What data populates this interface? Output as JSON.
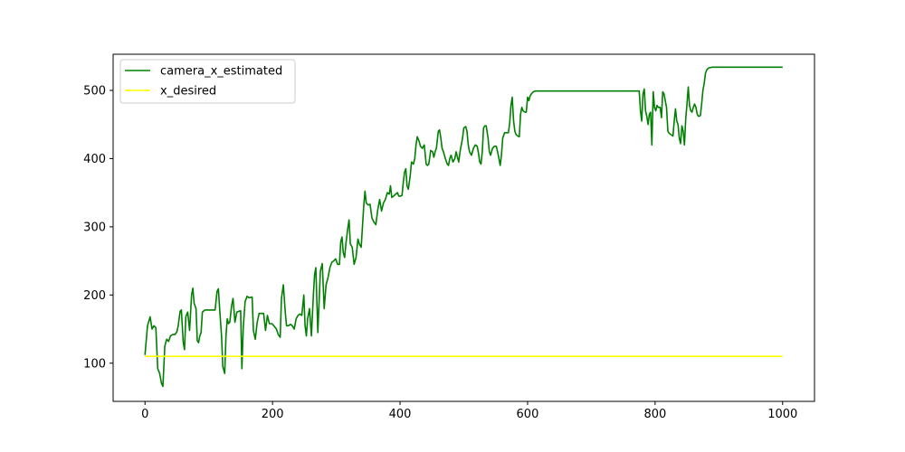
{
  "chart_data": {
    "type": "line",
    "title": "",
    "xlabel": "",
    "ylabel": "",
    "xlim": [
      -50,
      1050
    ],
    "ylim": [
      44,
      553
    ],
    "xticks": [
      0,
      200,
      400,
      600,
      800,
      1000
    ],
    "yticks": [
      100,
      200,
      300,
      400,
      500
    ],
    "grid": false,
    "legend_position": "top-left",
    "series": [
      {
        "name": "camera_x_estimated",
        "color": "#008000",
        "points": [
          [
            0,
            112
          ],
          [
            4,
            155
          ],
          [
            8,
            168
          ],
          [
            11,
            150
          ],
          [
            14,
            155
          ],
          [
            17,
            152
          ],
          [
            20,
            92
          ],
          [
            23,
            85
          ],
          [
            26,
            70
          ],
          [
            28,
            66
          ],
          [
            31,
            125
          ],
          [
            34,
            135
          ],
          [
            37,
            132
          ],
          [
            40,
            140
          ],
          [
            43,
            142
          ],
          [
            47,
            142
          ],
          [
            50,
            146
          ],
          [
            52,
            155
          ],
          [
            55,
            176
          ],
          [
            57,
            178
          ],
          [
            60,
            130
          ],
          [
            62,
            120
          ],
          [
            64,
            168
          ],
          [
            67,
            175
          ],
          [
            70,
            148
          ],
          [
            73,
            200
          ],
          [
            75,
            210
          ],
          [
            77,
            188
          ],
          [
            80,
            180
          ],
          [
            82,
            133
          ],
          [
            84,
            130
          ],
          [
            86,
            140
          ],
          [
            88,
            145
          ],
          [
            90,
            175
          ],
          [
            94,
            178
          ],
          [
            100,
            178
          ],
          [
            106,
            178
          ],
          [
            110,
            178
          ],
          [
            113,
            205
          ],
          [
            115,
            209
          ],
          [
            117,
            180
          ],
          [
            120,
            140
          ],
          [
            122,
            95
          ],
          [
            125,
            85
          ],
          [
            127,
            140
          ],
          [
            129,
            165
          ],
          [
            131,
            158
          ],
          [
            133,
            160
          ],
          [
            136,
            185
          ],
          [
            138,
            195
          ],
          [
            141,
            160
          ],
          [
            144,
            175
          ],
          [
            147,
            176
          ],
          [
            150,
            177
          ],
          [
            152,
            92
          ],
          [
            154,
            150
          ],
          [
            157,
            190
          ],
          [
            160,
            198
          ],
          [
            163,
            196
          ],
          [
            168,
            197
          ],
          [
            170,
            148
          ],
          [
            173,
            135
          ],
          [
            176,
            160
          ],
          [
            179,
            173
          ],
          [
            182,
            173
          ],
          [
            186,
            173
          ],
          [
            189,
            148
          ],
          [
            192,
            170
          ],
          [
            195,
            158
          ],
          [
            199,
            158
          ],
          [
            202,
            155
          ],
          [
            206,
            150
          ],
          [
            209,
            142
          ],
          [
            212,
            138
          ],
          [
            214,
            195
          ],
          [
            217,
            215
          ],
          [
            220,
            175
          ],
          [
            222,
            155
          ],
          [
            225,
            155
          ],
          [
            228,
            157
          ],
          [
            231,
            155
          ],
          [
            234,
            150
          ],
          [
            237,
            165
          ],
          [
            240,
            170
          ],
          [
            243,
            172
          ],
          [
            246,
            170
          ],
          [
            249,
            200
          ],
          [
            251,
            155
          ],
          [
            253,
            140
          ],
          [
            255,
            165
          ],
          [
            258,
            180
          ],
          [
            261,
            140
          ],
          [
            264,
            198
          ],
          [
            266,
            230
          ],
          [
            268,
            240
          ],
          [
            271,
            145
          ],
          [
            273,
            190
          ],
          [
            275,
            235
          ],
          [
            278,
            246
          ],
          [
            281,
            180
          ],
          [
            284,
            215
          ],
          [
            287,
            225
          ],
          [
            290,
            240
          ],
          [
            293,
            248
          ],
          [
            296,
            250
          ],
          [
            299,
            253
          ],
          [
            302,
            245
          ],
          [
            305,
            245
          ],
          [
            307,
            278
          ],
          [
            309,
            285
          ],
          [
            311,
            262
          ],
          [
            313,
            255
          ],
          [
            315,
            275
          ],
          [
            318,
            298
          ],
          [
            320,
            310
          ],
          [
            322,
            275
          ],
          [
            325,
            270
          ],
          [
            328,
            245
          ],
          [
            331,
            255
          ],
          [
            334,
            282
          ],
          [
            336,
            275
          ],
          [
            339,
            270
          ],
          [
            341,
            300
          ],
          [
            343,
            330
          ],
          [
            345,
            352
          ],
          [
            347,
            335
          ],
          [
            350,
            332
          ],
          [
            353,
            333
          ],
          [
            356,
            313
          ],
          [
            359,
            307
          ],
          [
            362,
            303
          ],
          [
            365,
            325
          ],
          [
            368,
            340
          ],
          [
            371,
            323
          ],
          [
            374,
            335
          ],
          [
            377,
            340
          ],
          [
            380,
            350
          ],
          [
            383,
            348
          ],
          [
            385,
            360
          ],
          [
            387,
            343
          ],
          [
            390,
            345
          ],
          [
            393,
            348
          ],
          [
            396,
            350
          ],
          [
            398,
            345
          ],
          [
            401,
            345
          ],
          [
            403,
            346
          ],
          [
            405,
            365
          ],
          [
            407,
            380
          ],
          [
            409,
            385
          ],
          [
            411,
            360
          ],
          [
            413,
            355
          ],
          [
            416,
            375
          ],
          [
            418,
            395
          ],
          [
            421,
            392
          ],
          [
            423,
            400
          ],
          [
            425,
            420
          ],
          [
            427,
            432
          ],
          [
            430,
            425
          ],
          [
            432,
            418
          ],
          [
            435,
            415
          ],
          [
            438,
            420
          ],
          [
            441,
            392
          ],
          [
            443,
            390
          ],
          [
            445,
            392
          ],
          [
            448,
            412
          ],
          [
            451,
            410
          ],
          [
            453,
            402
          ],
          [
            455,
            410
          ],
          [
            457,
            415
          ],
          [
            460,
            440
          ],
          [
            462,
            442
          ],
          [
            464,
            430
          ],
          [
            466,
            415
          ],
          [
            468,
            410
          ],
          [
            471,
            400
          ],
          [
            474,
            392
          ],
          [
            476,
            390
          ],
          [
            478,
            400
          ],
          [
            480,
            405
          ],
          [
            483,
            395
          ],
          [
            486,
            400
          ],
          [
            488,
            410
          ],
          [
            490,
            402
          ],
          [
            492,
            395
          ],
          [
            494,
            410
          ],
          [
            496,
            420
          ],
          [
            498,
            430
          ],
          [
            500,
            445
          ],
          [
            503,
            447
          ],
          [
            505,
            440
          ],
          [
            507,
            420
          ],
          [
            509,
            410
          ],
          [
            512,
            405
          ],
          [
            515,
            415
          ],
          [
            518,
            420
          ],
          [
            521,
            418
          ],
          [
            523,
            408
          ],
          [
            525,
            395
          ],
          [
            527,
            392
          ],
          [
            529,
            410
          ],
          [
            531,
            445
          ],
          [
            533,
            448
          ],
          [
            535,
            448
          ],
          [
            538,
            430
          ],
          [
            540,
            410
          ],
          [
            542,
            405
          ],
          [
            545,
            415
          ],
          [
            548,
            418
          ],
          [
            551,
            418
          ],
          [
            553,
            410
          ],
          [
            555,
            400
          ],
          [
            557,
            390
          ],
          [
            559,
            405
          ],
          [
            561,
            430
          ],
          [
            564,
            438
          ],
          [
            567,
            438
          ],
          [
            570,
            438
          ],
          [
            572,
            452
          ],
          [
            574,
            478
          ],
          [
            576,
            490
          ],
          [
            578,
            455
          ],
          [
            580,
            440
          ],
          [
            582,
            435
          ],
          [
            585,
            433
          ],
          [
            587,
            432
          ],
          [
            589,
            465
          ],
          [
            591,
            475
          ],
          [
            593,
            470
          ],
          [
            596,
            468
          ],
          [
            598,
            468
          ],
          [
            600,
            490
          ],
          [
            602,
            485
          ],
          [
            604,
            492
          ],
          [
            606,
            495
          ],
          [
            609,
            498
          ],
          [
            612,
            499
          ],
          [
            620,
            499
          ],
          [
            640,
            499
          ],
          [
            660,
            499
          ],
          [
            680,
            499
          ],
          [
            700,
            499
          ],
          [
            720,
            499
          ],
          [
            740,
            499
          ],
          [
            760,
            499
          ],
          [
            775,
            499
          ],
          [
            777,
            470
          ],
          [
            779,
            455
          ],
          [
            781,
            495
          ],
          [
            783,
            502
          ],
          [
            785,
            470
          ],
          [
            787,
            462
          ],
          [
            789,
            450
          ],
          [
            791,
            465
          ],
          [
            793,
            468
          ],
          [
            795,
            420
          ],
          [
            797,
            498
          ],
          [
            799,
            475
          ],
          [
            801,
            470
          ],
          [
            803,
            478
          ],
          [
            805,
            475
          ],
          [
            808,
            475
          ],
          [
            810,
            460
          ],
          [
            812,
            498
          ],
          [
            814,
            495
          ],
          [
            816,
            485
          ],
          [
            818,
            475
          ],
          [
            820,
            440
          ],
          [
            822,
            437
          ],
          [
            825,
            435
          ],
          [
            828,
            433
          ],
          [
            830,
            455
          ],
          [
            832,
            473
          ],
          [
            834,
            455
          ],
          [
            836,
            450
          ],
          [
            838,
            430
          ],
          [
            840,
            422
          ],
          [
            842,
            448
          ],
          [
            844,
            440
          ],
          [
            846,
            420
          ],
          [
            848,
            458
          ],
          [
            850,
            480
          ],
          [
            852,
            505
          ],
          [
            854,
            478
          ],
          [
            856,
            470
          ],
          [
            858,
            468
          ],
          [
            860,
            475
          ],
          [
            862,
            480
          ],
          [
            864,
            475
          ],
          [
            866,
            465
          ],
          [
            868,
            462
          ],
          [
            871,
            463
          ],
          [
            873,
            480
          ],
          [
            875,
            500
          ],
          [
            877,
            510
          ],
          [
            879,
            525
          ],
          [
            881,
            530
          ],
          [
            884,
            533
          ],
          [
            890,
            534
          ],
          [
            920,
            534
          ],
          [
            960,
            534
          ],
          [
            1000,
            534
          ]
        ]
      },
      {
        "name": "x_desired",
        "color": "#ffff00",
        "points": [
          [
            0,
            110
          ],
          [
            1000,
            110
          ]
        ]
      }
    ]
  }
}
